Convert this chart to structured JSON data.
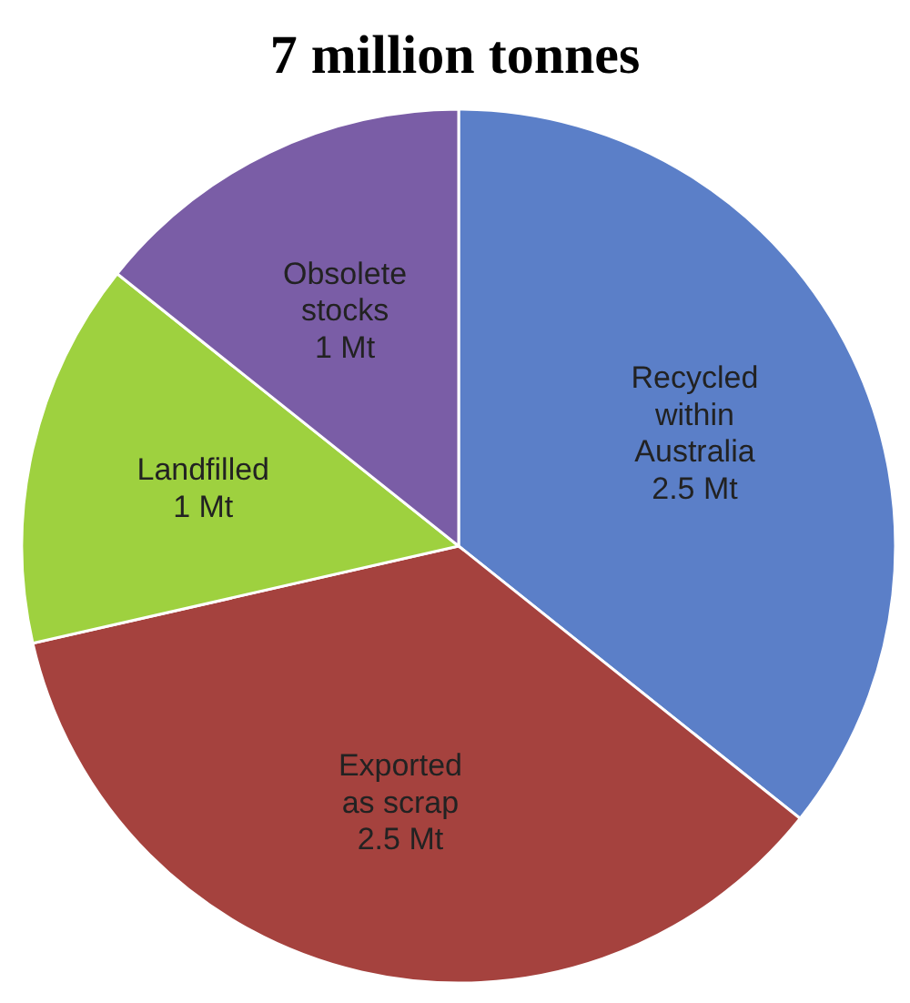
{
  "chart_data": {
    "type": "pie",
    "title": "7 million tonnes",
    "categories": [
      "Recycled within Australia",
      "Exported as scrap",
      "Landfilled",
      "Obsolete stocks"
    ],
    "values": [
      2.5,
      2.5,
      1,
      1
    ],
    "value_labels": [
      "2.5 Mt",
      "2.5 Mt",
      "1 Mt",
      "1 Mt"
    ],
    "colors": [
      "#5b7fc8",
      "#a5423e",
      "#9ed13f",
      "#7a5da6"
    ],
    "legend": false
  }
}
